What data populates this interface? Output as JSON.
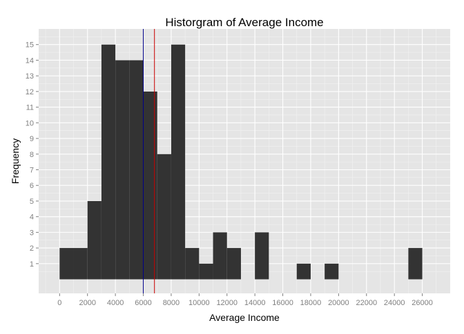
{
  "chart_data": {
    "type": "histogram",
    "title": "Historgram of Average Income",
    "xlabel": "Average Income",
    "ylabel": "Frequency",
    "xlim": [
      -1500,
      28000
    ],
    "ylim": [
      -0.9,
      16.0
    ],
    "x_ticks": [
      0,
      2000,
      4000,
      6000,
      8000,
      10000,
      12000,
      14000,
      16000,
      18000,
      20000,
      22000,
      24000,
      26000
    ],
    "y_ticks": [
      1,
      2,
      3,
      4,
      5,
      6,
      7,
      8,
      9,
      10,
      11,
      12,
      13,
      14,
      15
    ],
    "bin_width": 1000,
    "bins": [
      {
        "x0": 0,
        "x1": 1000,
        "count": 2
      },
      {
        "x0": 1000,
        "x1": 2000,
        "count": 2
      },
      {
        "x0": 2000,
        "x1": 3000,
        "count": 5
      },
      {
        "x0": 3000,
        "x1": 4000,
        "count": 15
      },
      {
        "x0": 4000,
        "x1": 5000,
        "count": 14
      },
      {
        "x0": 5000,
        "x1": 6000,
        "count": 14
      },
      {
        "x0": 6000,
        "x1": 7000,
        "count": 12
      },
      {
        "x0": 7000,
        "x1": 8000,
        "count": 8
      },
      {
        "x0": 8000,
        "x1": 9000,
        "count": 15
      },
      {
        "x0": 9000,
        "x1": 10000,
        "count": 2
      },
      {
        "x0": 10000,
        "x1": 11000,
        "count": 1
      },
      {
        "x0": 11000,
        "x1": 12000,
        "count": 3
      },
      {
        "x0": 12000,
        "x1": 13000,
        "count": 2
      },
      {
        "x0": 14000,
        "x1": 15000,
        "count": 3
      },
      {
        "x0": 17000,
        "x1": 18000,
        "count": 1
      },
      {
        "x0": 19000,
        "x1": 20000,
        "count": 1
      },
      {
        "x0": 25000,
        "x1": 26000,
        "count": 2
      }
    ],
    "reference_lines": [
      {
        "x": 6000,
        "color": "#00008b"
      },
      {
        "x": 6800,
        "color": "#cc0000"
      }
    ],
    "grid": true,
    "colors": {
      "panel_background": "#e5e5e5",
      "grid_major": "#ffffff",
      "grid_minor": "#f2f2f2",
      "bar_fill": "#333333"
    }
  }
}
